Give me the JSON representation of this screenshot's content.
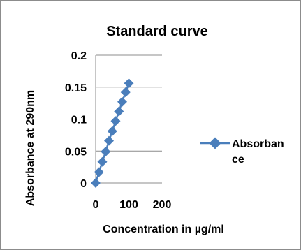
{
  "chart_data": {
    "type": "scatter",
    "title": "Standard curve",
    "xlabel": "Concentration in µg/ml",
    "ylabel": "Absorbance at 290nm",
    "xlim": [
      0,
      200
    ],
    "ylim": [
      0,
      0.2
    ],
    "xticks": [
      "0",
      "100",
      "200"
    ],
    "yticks": [
      "0",
      "0.05",
      "0.1",
      "0.15",
      "0.2"
    ],
    "grid": "horizontal",
    "legend": "right",
    "series": [
      {
        "name": "Absorbance",
        "color": "#4a7ebb",
        "marker": "diamond",
        "line": true,
        "x": [
          0,
          10,
          20,
          30,
          40,
          50,
          60,
          70,
          80,
          90,
          100
        ],
        "y": [
          0.0,
          0.017,
          0.033,
          0.049,
          0.066,
          0.081,
          0.097,
          0.112,
          0.127,
          0.142,
          0.156
        ]
      }
    ]
  },
  "legend_label_lines": [
    "Absorban",
    "ce"
  ]
}
